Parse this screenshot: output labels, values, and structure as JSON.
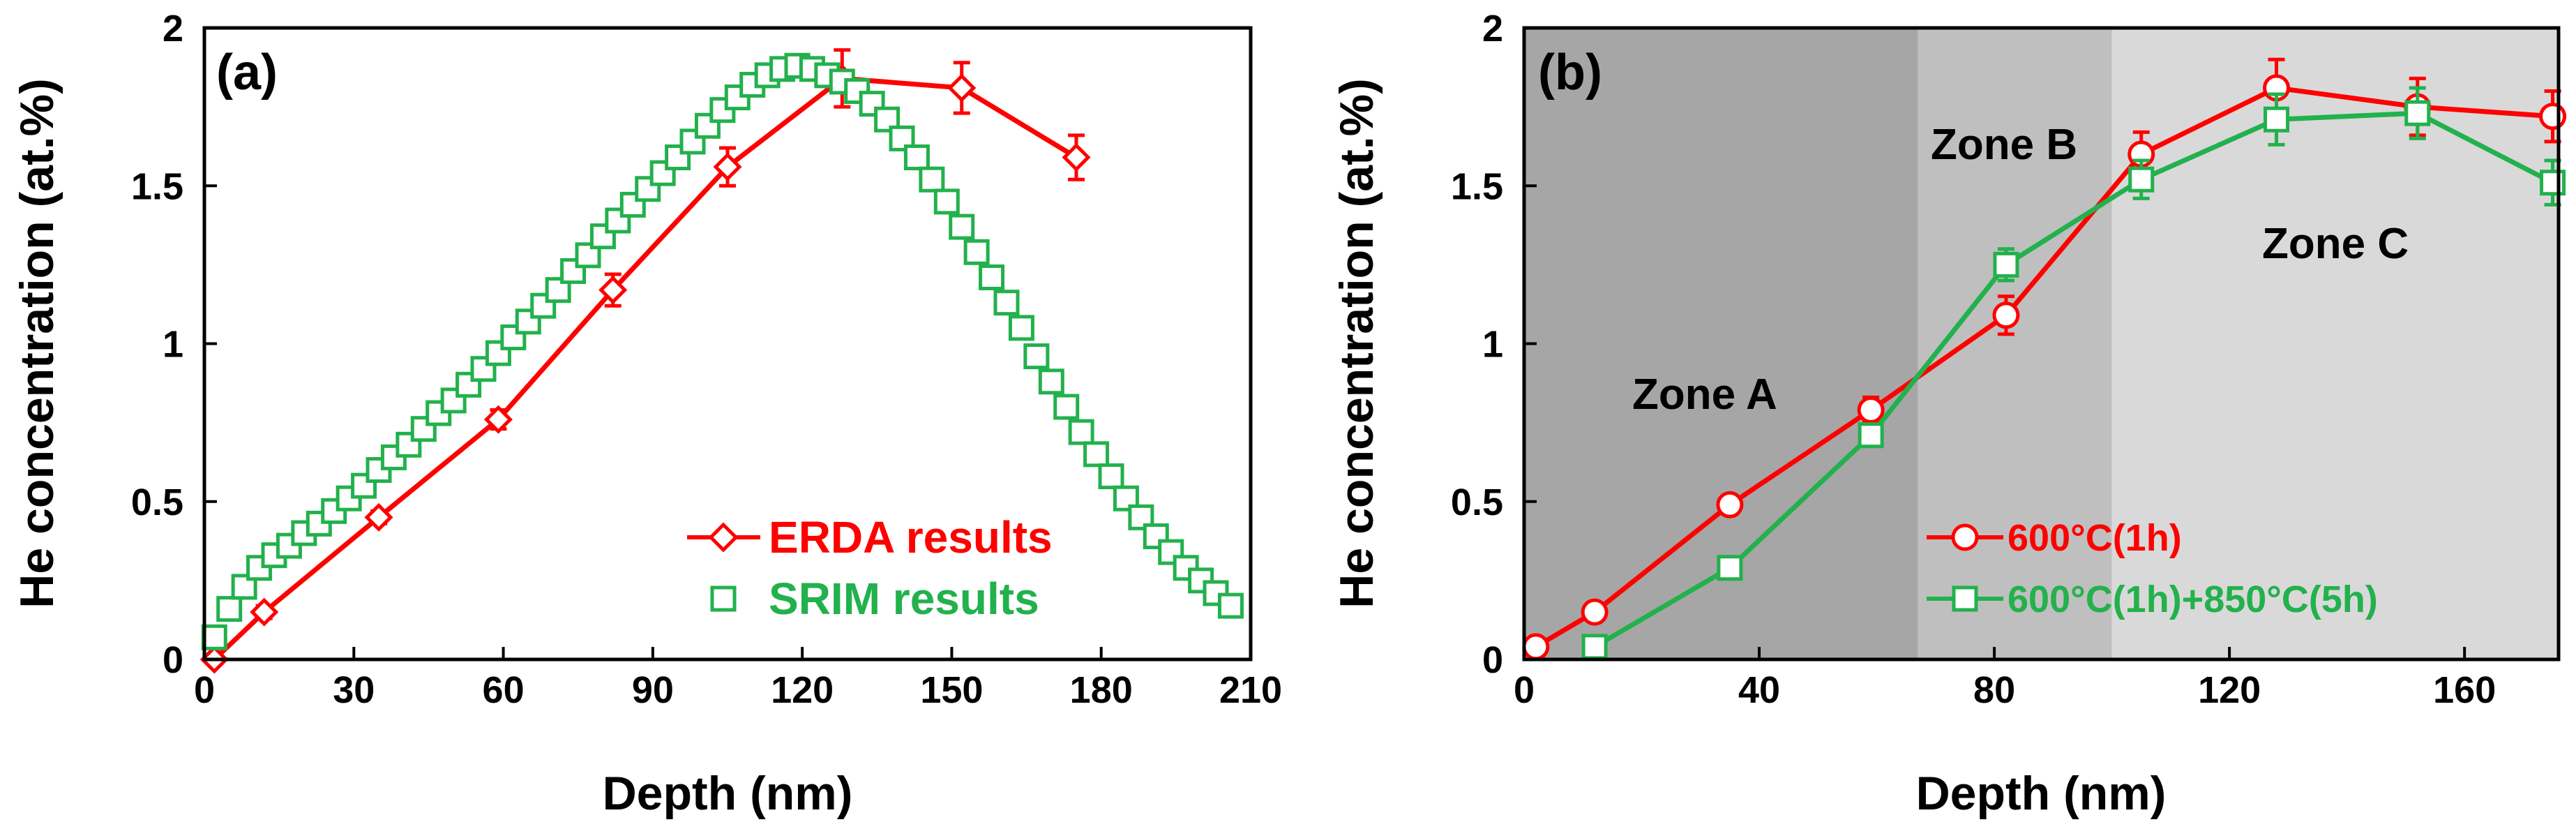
{
  "colors": {
    "red": "#ff0000",
    "green": "#22b14c",
    "zoneA": "#a6a6a6",
    "zoneB": "#bfbfbf",
    "zoneC": "#d9d9d9"
  },
  "chart_data": [
    {
      "panel": "(a)",
      "type": "line",
      "xlabel": "Depth (nm)",
      "ylabel": "He concentration (at.%)",
      "xlim": [
        0,
        210
      ],
      "ylim": [
        0,
        2
      ],
      "xticks": [
        "0",
        "30",
        "60",
        "90",
        "120",
        "150",
        "180",
        "210"
      ],
      "yticks": [
        "0",
        "0.5",
        "1",
        "1.5",
        "2"
      ],
      "series": [
        {
          "name": "ERDA results",
          "marker": "diamond",
          "color": "#ff0000",
          "x": [
            2,
            12,
            35,
            59,
            82,
            105,
            128,
            152,
            175
          ],
          "y": [
            0.0,
            0.15,
            0.45,
            0.76,
            1.17,
            1.56,
            1.84,
            1.81,
            1.59
          ],
          "err": [
            0,
            0.02,
            0.02,
            0.03,
            0.05,
            0.06,
            0.09,
            0.08,
            0.07
          ]
        },
        {
          "name": "SRIM results",
          "marker": "square",
          "color": "#22b14c",
          "x": [
            2,
            5,
            8,
            11,
            14,
            17,
            20,
            23,
            26,
            29,
            32,
            35,
            38,
            41,
            44,
            47,
            50,
            53,
            56,
            59,
            62,
            65,
            68,
            71,
            74,
            77,
            80,
            83,
            86,
            89,
            92,
            95,
            98,
            101,
            104,
            107,
            110,
            113,
            116,
            119,
            122,
            125,
            128,
            131,
            134,
            137,
            140,
            143,
            146,
            149,
            152,
            155,
            158,
            161,
            164,
            167,
            170,
            173,
            176,
            179,
            182,
            185,
            188,
            191,
            194,
            197,
            200,
            203,
            206
          ],
          "y": [
            0.07,
            0.16,
            0.23,
            0.29,
            0.33,
            0.36,
            0.4,
            0.43,
            0.47,
            0.51,
            0.55,
            0.6,
            0.64,
            0.68,
            0.73,
            0.78,
            0.82,
            0.87,
            0.92,
            0.97,
            1.02,
            1.07,
            1.12,
            1.17,
            1.23,
            1.28,
            1.34,
            1.39,
            1.44,
            1.49,
            1.54,
            1.59,
            1.64,
            1.69,
            1.74,
            1.78,
            1.82,
            1.85,
            1.87,
            1.88,
            1.87,
            1.85,
            1.83,
            1.8,
            1.76,
            1.71,
            1.65,
            1.59,
            1.52,
            1.45,
            1.37,
            1.29,
            1.21,
            1.13,
            1.05,
            0.96,
            0.88,
            0.8,
            0.72,
            0.65,
            0.58,
            0.51,
            0.45,
            0.39,
            0.34,
            0.29,
            0.25,
            0.21,
            0.17
          ],
          "err": []
        }
      ],
      "legend": "bottom-right"
    },
    {
      "panel": "(b)",
      "type": "line",
      "xlabel": "Depth (nm)",
      "ylabel": "He concentration (at.%)",
      "xlim": [
        0,
        176
      ],
      "ylim": [
        0,
        2
      ],
      "xticks": [
        "0",
        "40",
        "80",
        "120",
        "160"
      ],
      "yticks": [
        "0",
        "0.5",
        "1",
        "1.5",
        "2"
      ],
      "zones": [
        {
          "label": "Zone A",
          "from": 0,
          "to": 67,
          "color": "#a6a6a6"
        },
        {
          "label": "Zone B",
          "from": 67,
          "to": 100,
          "color": "#bfbfbf"
        },
        {
          "label": "Zone C",
          "from": 100,
          "to": 176,
          "color": "#d9d9d9"
        }
      ],
      "series": [
        {
          "name": "600°C(1h)",
          "marker": "circle",
          "color": "#ff0000",
          "x": [
            2,
            12,
            35,
            59,
            82,
            105,
            128,
            152,
            175
          ],
          "y": [
            0.04,
            0.15,
            0.49,
            0.79,
            1.09,
            1.6,
            1.81,
            1.75,
            1.72
          ],
          "err": [
            0.01,
            0.02,
            0.03,
            0.04,
            0.06,
            0.07,
            0.09,
            0.09,
            0.08
          ]
        },
        {
          "name": "600°C(1h)+850°C(5h)",
          "marker": "square",
          "color": "#22b14c",
          "x": [
            12,
            35,
            59,
            82,
            105,
            128,
            152,
            175
          ],
          "y": [
            0.04,
            0.29,
            0.71,
            1.25,
            1.52,
            1.71,
            1.73,
            1.51
          ],
          "err": [
            0.01,
            0.02,
            0.03,
            0.05,
            0.06,
            0.08,
            0.08,
            0.07
          ]
        }
      ],
      "legend": "bottom-right"
    }
  ]
}
